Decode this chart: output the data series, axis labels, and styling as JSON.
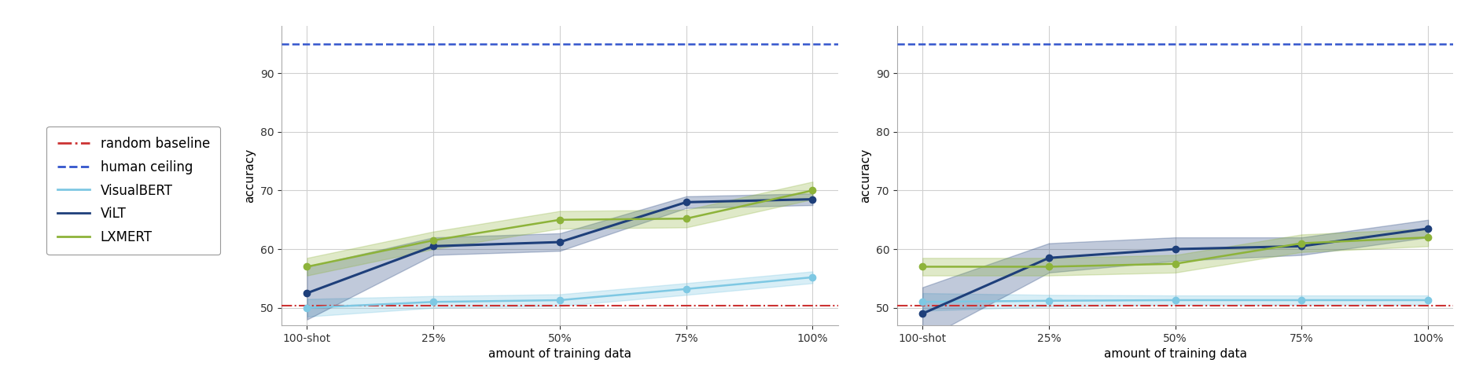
{
  "x_labels": [
    "100-shot",
    "25%",
    "50%",
    "75%",
    "100%"
  ],
  "x_values": [
    0,
    1,
    2,
    3,
    4
  ],
  "random_baseline": 50.3,
  "human_ceiling": 95.0,
  "plot1": {
    "visual_bert_mean": [
      50.0,
      51.0,
      51.3,
      53.2,
      55.2
    ],
    "visual_bert_std": [
      1.5,
      1.0,
      1.0,
      1.0,
      1.0
    ],
    "vilt_mean": [
      52.5,
      60.5,
      61.2,
      68.0,
      68.5
    ],
    "vilt_std": [
      4.5,
      1.5,
      1.5,
      1.0,
      1.0
    ],
    "lxmert_mean": [
      57.0,
      61.5,
      65.0,
      65.2,
      70.0
    ],
    "lxmert_std": [
      1.5,
      1.5,
      1.5,
      1.5,
      1.5
    ]
  },
  "plot2": {
    "visual_bert_mean": [
      51.0,
      51.2,
      51.3,
      51.3,
      51.3
    ],
    "visual_bert_std": [
      1.5,
      1.0,
      0.8,
      0.8,
      0.8
    ],
    "vilt_mean": [
      49.0,
      58.5,
      60.0,
      60.5,
      63.5
    ],
    "vilt_std": [
      4.5,
      2.5,
      2.0,
      1.5,
      1.5
    ],
    "lxmert_mean": [
      57.0,
      57.0,
      57.5,
      61.0,
      62.0
    ],
    "lxmert_std": [
      1.5,
      1.5,
      1.5,
      1.5,
      1.5
    ]
  },
  "colors": {
    "visual_bert": "#7ec8e3",
    "vilt": "#1e3f7a",
    "lxmert": "#8db33a",
    "random_baseline": "#cc3333",
    "human_ceiling": "#3355cc"
  },
  "ylim": [
    47,
    98
  ],
  "yticks": [
    50,
    60,
    70,
    80,
    90
  ],
  "xlabel": "amount of training data",
  "ylabel": "accuracy",
  "legend_labels": [
    "random baseline",
    "human ceiling",
    "VisualBERT",
    "ViLT",
    "LXMERT"
  ],
  "figsize": [
    18.86,
    4.76
  ],
  "dpi": 100
}
